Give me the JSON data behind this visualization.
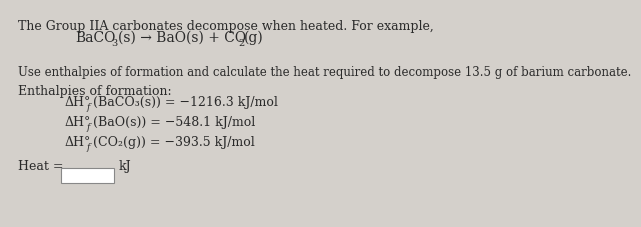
{
  "bg_color": "#d4d0cb",
  "text_color": "#2a2a2a",
  "line1": "The Group IIA carbonates decompose when heated. For example,",
  "line3": "Use enthalpies of formation and calculate the heat required to decompose 13.5 g of barium carbonate.",
  "line4": "Enthalpies of formation:",
  "heat_label": "Heat =",
  "heat_unit": "kJ",
  "fs": 9.0,
  "fs_sub": 6.5,
  "fs_eq": 10.0,
  "fs_eq_sub": 7.0
}
